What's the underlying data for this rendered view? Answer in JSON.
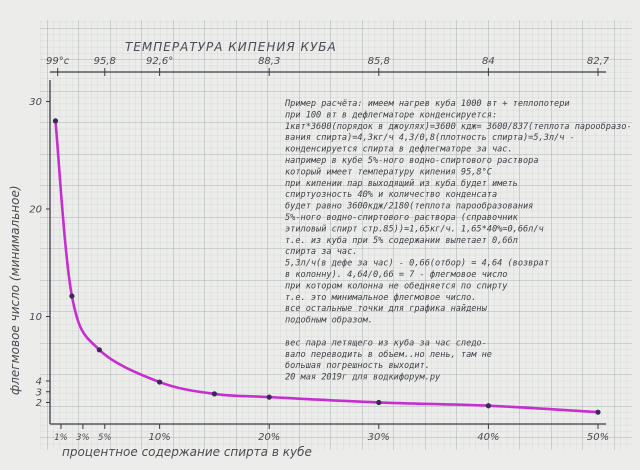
{
  "chart_data": {
    "type": "line",
    "title": "ТЕМПЕРАТУРА КИПЕНИЯ КУБА",
    "xlabel": "процентное содержание спирта в кубе",
    "ylabel": "флегмовое число (минимальное)",
    "xlim": [
      0,
      50
    ],
    "ylim": [
      0,
      32
    ],
    "x_ticks": [
      {
        "v": 1,
        "label": "1%"
      },
      {
        "v": 3,
        "label": "3%"
      },
      {
        "v": 5,
        "label": "5%"
      },
      {
        "v": 10,
        "label": "10%"
      },
      {
        "v": 20,
        "label": "20%"
      },
      {
        "v": 30,
        "label": "30%"
      },
      {
        "v": 40,
        "label": "40%"
      },
      {
        "v": 50,
        "label": "50%"
      }
    ],
    "y_ticks": [
      {
        "v": 2,
        "label": "2"
      },
      {
        "v": 3,
        "label": "3"
      },
      {
        "v": 4,
        "label": "4"
      },
      {
        "v": 10,
        "label": "10"
      },
      {
        "v": 20,
        "label": "20"
      },
      {
        "v": 30,
        "label": "30"
      }
    ],
    "top_ticks": [
      {
        "v": 0.7,
        "label": "99°c"
      },
      {
        "v": 5,
        "label": "95,8"
      },
      {
        "v": 10,
        "label": "92,6°"
      },
      {
        "v": 20,
        "label": "88,3"
      },
      {
        "v": 30,
        "label": "85,8"
      },
      {
        "v": 40,
        "label": "84"
      },
      {
        "v": 50,
        "label": "82,7"
      }
    ],
    "series": [
      {
        "color": "#c62fcf",
        "points": [
          [
            0.5,
            28.2
          ],
          [
            2,
            11.9
          ],
          [
            4.5,
            6.9
          ],
          [
            10,
            3.9
          ],
          [
            15,
            2.8
          ],
          [
            20,
            2.5
          ],
          [
            30,
            2.0
          ],
          [
            40,
            1.7
          ],
          [
            50,
            1.1
          ]
        ]
      }
    ],
    "grid": true
  },
  "notes": [
    "Пример расчёта: имеем нагрев куба 1000 вт + теплопотери",
    "при 100 вт в дефлегматоре конденсируется:",
    "1квт*3600(порядок в джоулях)=3600 кдж= 3600/837(теплота парообразо-",
    "вания спирта)=4,3кг/ч  4,3/0,8(плотность спирта)=5,3л/ч -",
    "конденсируется спирта в дефлегматоре за час.",
    "например в кубе 5%-ного водно-спиртового раствора",
    "который имеет температуру кипения 95,8°С",
    "при кипении пар выходящий из куба будет иметь",
    "спиртуозность 40% и количество конденсата",
    "будет равно 3600кдж/2180(теплота парообразования",
    "5%-ного водно-спиртового раствора (справочник",
    "этиловый спирт стр.85))=1,65кг/ч. 1,65*40%=0,66л/ч",
    "т.е. из куба при 5% содержании вылетает 0,66л",
    "спирта за час.",
    "5,3л/ч(в дефе за час) - 0,66(отбор) = 4,64 (возврат",
    "в колонну). 4,64/0,66 = 7 - флегмовое число",
    "при котором колонна не обедняется по спирту",
    "т.е. это минимальное флегмовое число.",
    "все остальные точки для графика найдены",
    "подобным образом.",
    "",
    "вес пара летящего из куба за час следо-",
    "вало переводить в объем..но лень, там не",
    "большая погрешность выходит.",
    "20 мая 2019г  для водкифорум.ру"
  ]
}
